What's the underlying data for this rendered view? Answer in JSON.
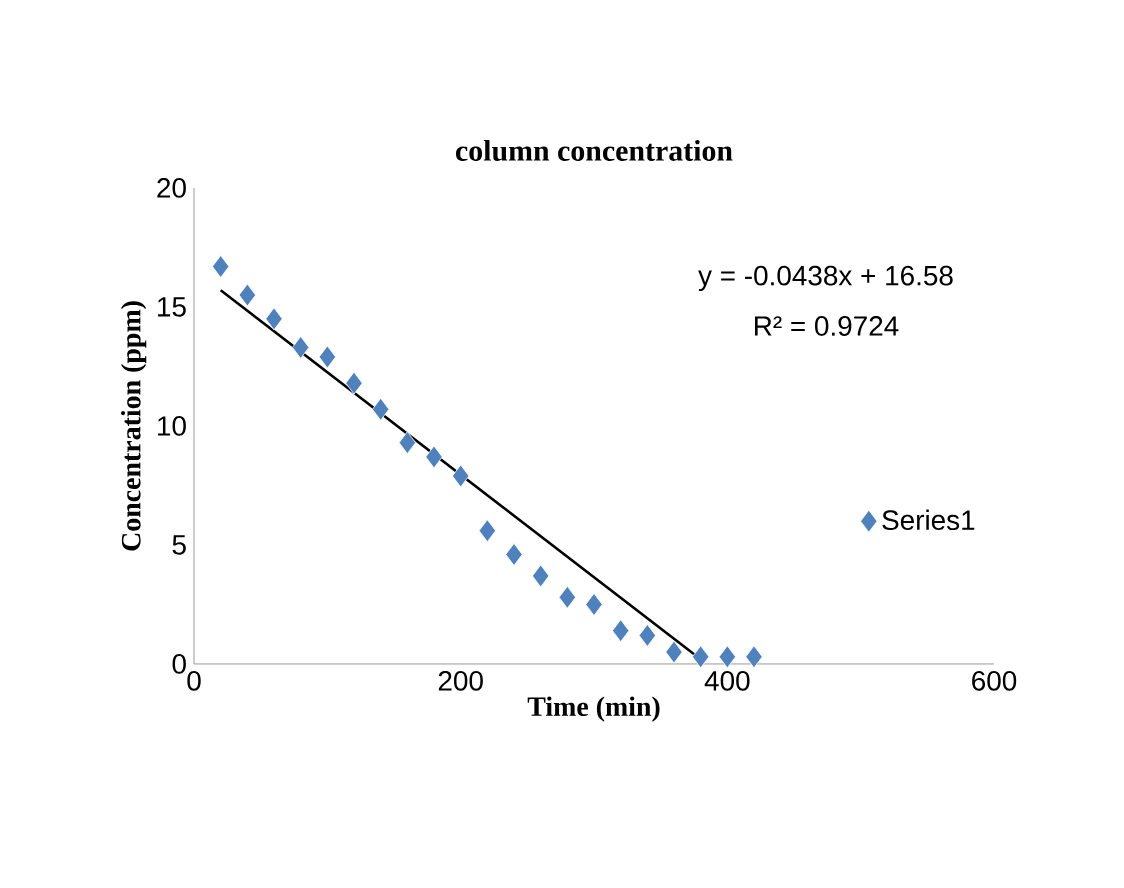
{
  "chart_data": {
    "type": "scatter",
    "title": "column concentration",
    "xlabel": "Time (min)",
    "ylabel": "Concentration (ppm)",
    "x": [
      20,
      40,
      60,
      80,
      100,
      120,
      140,
      160,
      180,
      200,
      220,
      240,
      260,
      280,
      300,
      320,
      340,
      360,
      380,
      400,
      420
    ],
    "series": [
      {
        "name": "Series1",
        "color": "#4f81bd",
        "marker": "diamond",
        "values": [
          16.7,
          15.5,
          14.5,
          13.3,
          12.9,
          11.8,
          10.7,
          9.3,
          8.7,
          7.9,
          5.6,
          4.6,
          3.7,
          2.8,
          2.5,
          1.4,
          1.2,
          0.5,
          0.3,
          0.3,
          0.3
        ]
      },
      {
        "type": "line",
        "color": "#000000",
        "x": [
          20,
          380
        ],
        "values": [
          15.7,
          0.2
        ]
      }
    ],
    "annotations": [
      "y = -0.0438x + 16.58",
      "R² = 0.9724"
    ],
    "xlim": [
      0,
      600
    ],
    "xticks": [
      0,
      200,
      400,
      600
    ],
    "ylim": [
      0,
      20
    ],
    "yticks": [
      0,
      5,
      10,
      15,
      20
    ],
    "legend": "right",
    "grid": false
  }
}
